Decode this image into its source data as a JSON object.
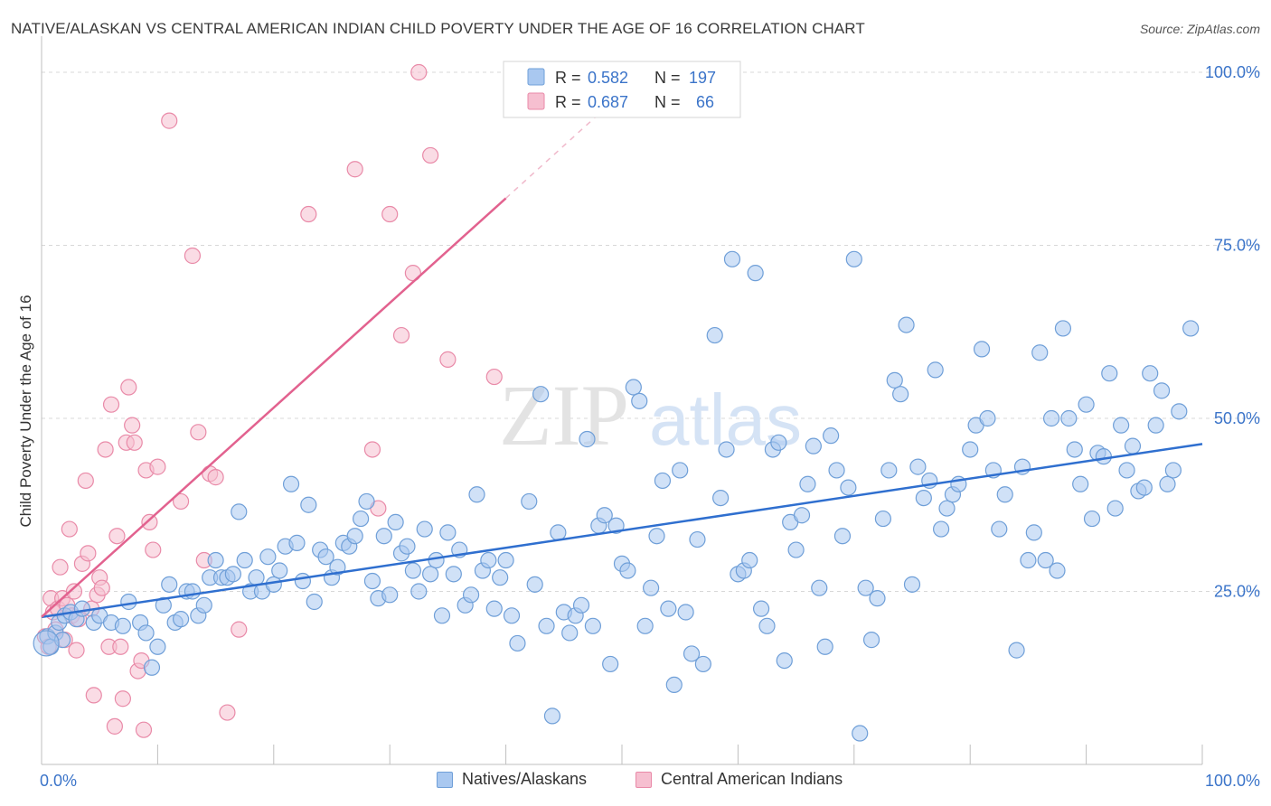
{
  "header": {
    "title": "NATIVE/ALASKAN VS CENTRAL AMERICAN INDIAN CHILD POVERTY UNDER THE AGE OF 16 CORRELATION CHART",
    "source": "Source: ZipAtlas.com"
  },
  "watermark": {
    "part1": "ZIP",
    "part2": "atlas"
  },
  "colors": {
    "blue_fill": "#a9c8f0",
    "blue_stroke": "#6f9fd8",
    "blue_line": "#2f6fcf",
    "pink_fill": "#f6bfd0",
    "pink_stroke": "#e98aa8",
    "pink_line": "#e2628f",
    "accent_text": "#3b74c9",
    "grid": "#d8d8d8"
  },
  "legend": {
    "items": [
      {
        "r_label": "R =",
        "r_value": "0.582",
        "n_label": "N =",
        "n_value": "197",
        "color": "blue"
      },
      {
        "r_label": "R =",
        "r_value": "0.687",
        "n_label": "N =",
        "n_value": "66",
        "color": "pink"
      }
    ]
  },
  "bottom_legend": [
    "Natives/Alaskans",
    "Central American Indians"
  ],
  "chart_data": {
    "type": "scatter",
    "ylabel": "Child Poverty Under the Age of 16",
    "xlabel": "",
    "xlim": [
      0,
      100
    ],
    "ylim": [
      0,
      100
    ],
    "x_tick_labels": [
      {
        "value": 0,
        "label": "0.0%"
      },
      {
        "value": 100,
        "label": "100.0%"
      }
    ],
    "y_tick_labels": [
      {
        "value": 25,
        "label": "25.0%"
      },
      {
        "value": 50,
        "label": "50.0%"
      },
      {
        "value": 75,
        "label": "75.0%"
      },
      {
        "value": 100,
        "label": "100.0%"
      }
    ],
    "grid": true,
    "series": [
      {
        "name": "Natives/Alaskans",
        "color": "#a9c8f0",
        "trend": {
          "x": [
            0,
            100
          ],
          "y": [
            21.3,
            46.3
          ]
        },
        "points": [
          [
            0.5,
            18.5
          ],
          [
            0.8,
            17
          ],
          [
            1.2,
            19
          ],
          [
            1.5,
            20.5
          ],
          [
            1.8,
            18
          ],
          [
            2,
            21.5
          ],
          [
            2.5,
            22
          ],
          [
            3,
            21
          ],
          [
            3.5,
            22.5
          ],
          [
            4.5,
            20.5
          ],
          [
            5,
            21.5
          ],
          [
            6,
            20.5
          ],
          [
            7,
            20
          ],
          [
            7.5,
            23.5
          ],
          [
            8.5,
            20.5
          ],
          [
            9,
            19
          ],
          [
            9.5,
            14
          ],
          [
            10,
            17
          ],
          [
            10.5,
            23
          ],
          [
            11,
            26
          ],
          [
            11.5,
            20.5
          ],
          [
            12,
            21
          ],
          [
            12.5,
            25
          ],
          [
            13,
            25
          ],
          [
            13.5,
            21.5
          ],
          [
            14,
            23
          ],
          [
            14.5,
            27
          ],
          [
            15,
            29.5
          ],
          [
            15.5,
            27
          ],
          [
            16,
            27
          ],
          [
            16.5,
            27.5
          ],
          [
            17,
            36.5
          ],
          [
            17.5,
            29.5
          ],
          [
            18,
            25
          ],
          [
            18.5,
            27
          ],
          [
            19,
            25
          ],
          [
            19.5,
            30
          ],
          [
            20,
            26
          ],
          [
            20.5,
            28
          ],
          [
            21,
            31.5
          ],
          [
            21.5,
            40.5
          ],
          [
            22,
            32
          ],
          [
            22.5,
            26.5
          ],
          [
            23,
            37.5
          ],
          [
            23.5,
            23.5
          ],
          [
            24,
            31
          ],
          [
            24.5,
            30
          ],
          [
            25,
            27
          ],
          [
            25.5,
            28.5
          ],
          [
            26,
            32
          ],
          [
            26.5,
            31.5
          ],
          [
            27,
            33
          ],
          [
            27.5,
            35.5
          ],
          [
            28,
            38
          ],
          [
            28.5,
            26.5
          ],
          [
            29,
            24
          ],
          [
            29.5,
            33
          ],
          [
            30,
            24.5
          ],
          [
            30.5,
            35
          ],
          [
            31,
            30.5
          ],
          [
            31.5,
            31.5
          ],
          [
            32,
            28
          ],
          [
            32.5,
            25
          ],
          [
            33,
            34
          ],
          [
            33.5,
            27.5
          ],
          [
            34,
            29.5
          ],
          [
            34.5,
            21.5
          ],
          [
            35,
            33.5
          ],
          [
            35.5,
            27.5
          ],
          [
            36,
            31
          ],
          [
            36.5,
            23
          ],
          [
            37,
            24.5
          ],
          [
            37.5,
            39
          ],
          [
            38,
            28
          ],
          [
            38.5,
            29.5
          ],
          [
            39,
            22.5
          ],
          [
            39.5,
            27
          ],
          [
            40,
            29.5
          ],
          [
            40.5,
            21.5
          ],
          [
            41,
            17.5
          ],
          [
            42,
            38
          ],
          [
            42.5,
            26
          ],
          [
            43,
            53.5
          ],
          [
            43.5,
            20
          ],
          [
            44,
            7
          ],
          [
            44.5,
            33.5
          ],
          [
            45,
            22
          ],
          [
            45.5,
            19
          ],
          [
            46,
            21.5
          ],
          [
            46.5,
            23
          ],
          [
            47,
            47
          ],
          [
            47.5,
            20
          ],
          [
            48,
            34.5
          ],
          [
            48.5,
            36
          ],
          [
            49,
            14.5
          ],
          [
            49.5,
            34.5
          ],
          [
            50,
            29
          ],
          [
            50.5,
            28
          ],
          [
            51,
            54.5
          ],
          [
            51.5,
            52.5
          ],
          [
            52,
            20
          ],
          [
            52.5,
            25.5
          ],
          [
            53,
            33
          ],
          [
            53.5,
            41
          ],
          [
            54,
            22.5
          ],
          [
            54.5,
            11.5
          ],
          [
            55,
            42.5
          ],
          [
            55.5,
            22
          ],
          [
            56,
            16
          ],
          [
            56.5,
            32.5
          ],
          [
            57,
            14.5
          ],
          [
            58,
            62
          ],
          [
            58.5,
            38.5
          ],
          [
            59,
            45.5
          ],
          [
            59.5,
            73
          ],
          [
            60,
            27.5
          ],
          [
            60.5,
            28
          ],
          [
            61,
            29.5
          ],
          [
            61.5,
            71
          ],
          [
            62,
            22.5
          ],
          [
            62.5,
            20
          ],
          [
            63,
            45.5
          ],
          [
            63.5,
            46.5
          ],
          [
            64,
            15
          ],
          [
            64.5,
            35
          ],
          [
            65,
            31
          ],
          [
            65.5,
            36
          ],
          [
            66,
            40.5
          ],
          [
            66.5,
            46
          ],
          [
            67,
            25.5
          ],
          [
            67.5,
            17
          ],
          [
            68,
            47.5
          ],
          [
            68.5,
            42.5
          ],
          [
            69,
            33
          ],
          [
            69.5,
            40
          ],
          [
            70,
            73
          ],
          [
            70.5,
            4.5
          ],
          [
            71,
            25.5
          ],
          [
            71.5,
            18
          ],
          [
            72,
            24
          ],
          [
            72.5,
            35.5
          ],
          [
            73,
            42.5
          ],
          [
            73.5,
            55.5
          ],
          [
            74,
            53.5
          ],
          [
            74.5,
            63.5
          ],
          [
            75,
            26
          ],
          [
            75.5,
            43
          ],
          [
            76,
            38.5
          ],
          [
            76.5,
            41
          ],
          [
            77,
            57
          ],
          [
            77.5,
            34
          ],
          [
            78,
            37
          ],
          [
            78.5,
            39
          ],
          [
            79,
            40.5
          ],
          [
            80,
            45.5
          ],
          [
            80.5,
            49
          ],
          [
            81,
            60
          ],
          [
            81.5,
            50
          ],
          [
            82,
            42.5
          ],
          [
            82.5,
            34
          ],
          [
            83,
            39
          ],
          [
            84,
            16.5
          ],
          [
            84.5,
            43
          ],
          [
            85,
            29.5
          ],
          [
            85.5,
            33.5
          ],
          [
            86,
            59.5
          ],
          [
            86.5,
            29.5
          ],
          [
            87,
            50
          ],
          [
            87.5,
            28
          ],
          [
            88,
            63
          ],
          [
            88.5,
            50
          ],
          [
            89,
            45.5
          ],
          [
            89.5,
            40.5
          ],
          [
            90,
            52
          ],
          [
            90.5,
            35.5
          ],
          [
            91,
            45
          ],
          [
            91.5,
            44.5
          ],
          [
            92,
            56.5
          ],
          [
            92.5,
            37
          ],
          [
            93,
            49
          ],
          [
            93.5,
            42.5
          ],
          [
            94,
            46
          ],
          [
            94.5,
            39.5
          ],
          [
            95,
            40
          ],
          [
            95.5,
            56.5
          ],
          [
            96,
            49
          ],
          [
            96.5,
            54
          ],
          [
            97,
            40.5
          ],
          [
            97.5,
            42.5
          ],
          [
            98,
            51
          ],
          [
            99,
            63
          ]
        ]
      },
      {
        "name": "Central American Indians",
        "color": "#f6bfd0",
        "trend": {
          "x": [
            0,
            40
          ],
          "y": [
            21.3,
            81.8
          ],
          "dashed_to": [
            50,
            97
          ]
        },
        "points": [
          [
            0.3,
            18.5
          ],
          [
            0.6,
            17
          ],
          [
            0.8,
            24
          ],
          [
            1,
            22
          ],
          [
            1.2,
            19.5
          ],
          [
            1.4,
            22.5
          ],
          [
            1.6,
            28.5
          ],
          [
            1.8,
            24
          ],
          [
            2,
            18
          ],
          [
            2.2,
            23
          ],
          [
            2.4,
            34
          ],
          [
            2.6,
            21.5
          ],
          [
            2.8,
            25
          ],
          [
            3,
            16.5
          ],
          [
            3.2,
            21
          ],
          [
            3.5,
            29
          ],
          [
            3.8,
            41
          ],
          [
            4,
            30.5
          ],
          [
            4.3,
            22.5
          ],
          [
            4.5,
            10
          ],
          [
            4.8,
            24.5
          ],
          [
            5,
            27
          ],
          [
            5.2,
            25.5
          ],
          [
            5.5,
            45.5
          ],
          [
            5.8,
            17
          ],
          [
            6,
            52
          ],
          [
            6.3,
            5.5
          ],
          [
            6.5,
            33
          ],
          [
            6.8,
            17
          ],
          [
            7,
            9.5
          ],
          [
            7.3,
            46.5
          ],
          [
            7.5,
            54.5
          ],
          [
            7.8,
            49
          ],
          [
            8,
            46.5
          ],
          [
            8.3,
            13.5
          ],
          [
            8.6,
            15
          ],
          [
            8.8,
            5
          ],
          [
            9,
            42.5
          ],
          [
            9.3,
            35
          ],
          [
            9.6,
            31
          ],
          [
            10,
            43
          ],
          [
            11,
            93
          ],
          [
            12,
            38
          ],
          [
            13,
            73.5
          ],
          [
            13.5,
            48
          ],
          [
            14,
            29.5
          ],
          [
            14.5,
            42
          ],
          [
            15,
            41.5
          ],
          [
            16,
            7.5
          ],
          [
            17,
            19.5
          ],
          [
            23,
            79.5
          ],
          [
            27,
            86
          ],
          [
            28.5,
            45.5
          ],
          [
            29,
            37
          ],
          [
            30,
            79.5
          ],
          [
            31,
            62
          ],
          [
            32,
            71
          ],
          [
            32.5,
            100
          ],
          [
            33.5,
            88
          ],
          [
            35,
            58.5
          ],
          [
            39,
            56
          ]
        ]
      }
    ]
  }
}
